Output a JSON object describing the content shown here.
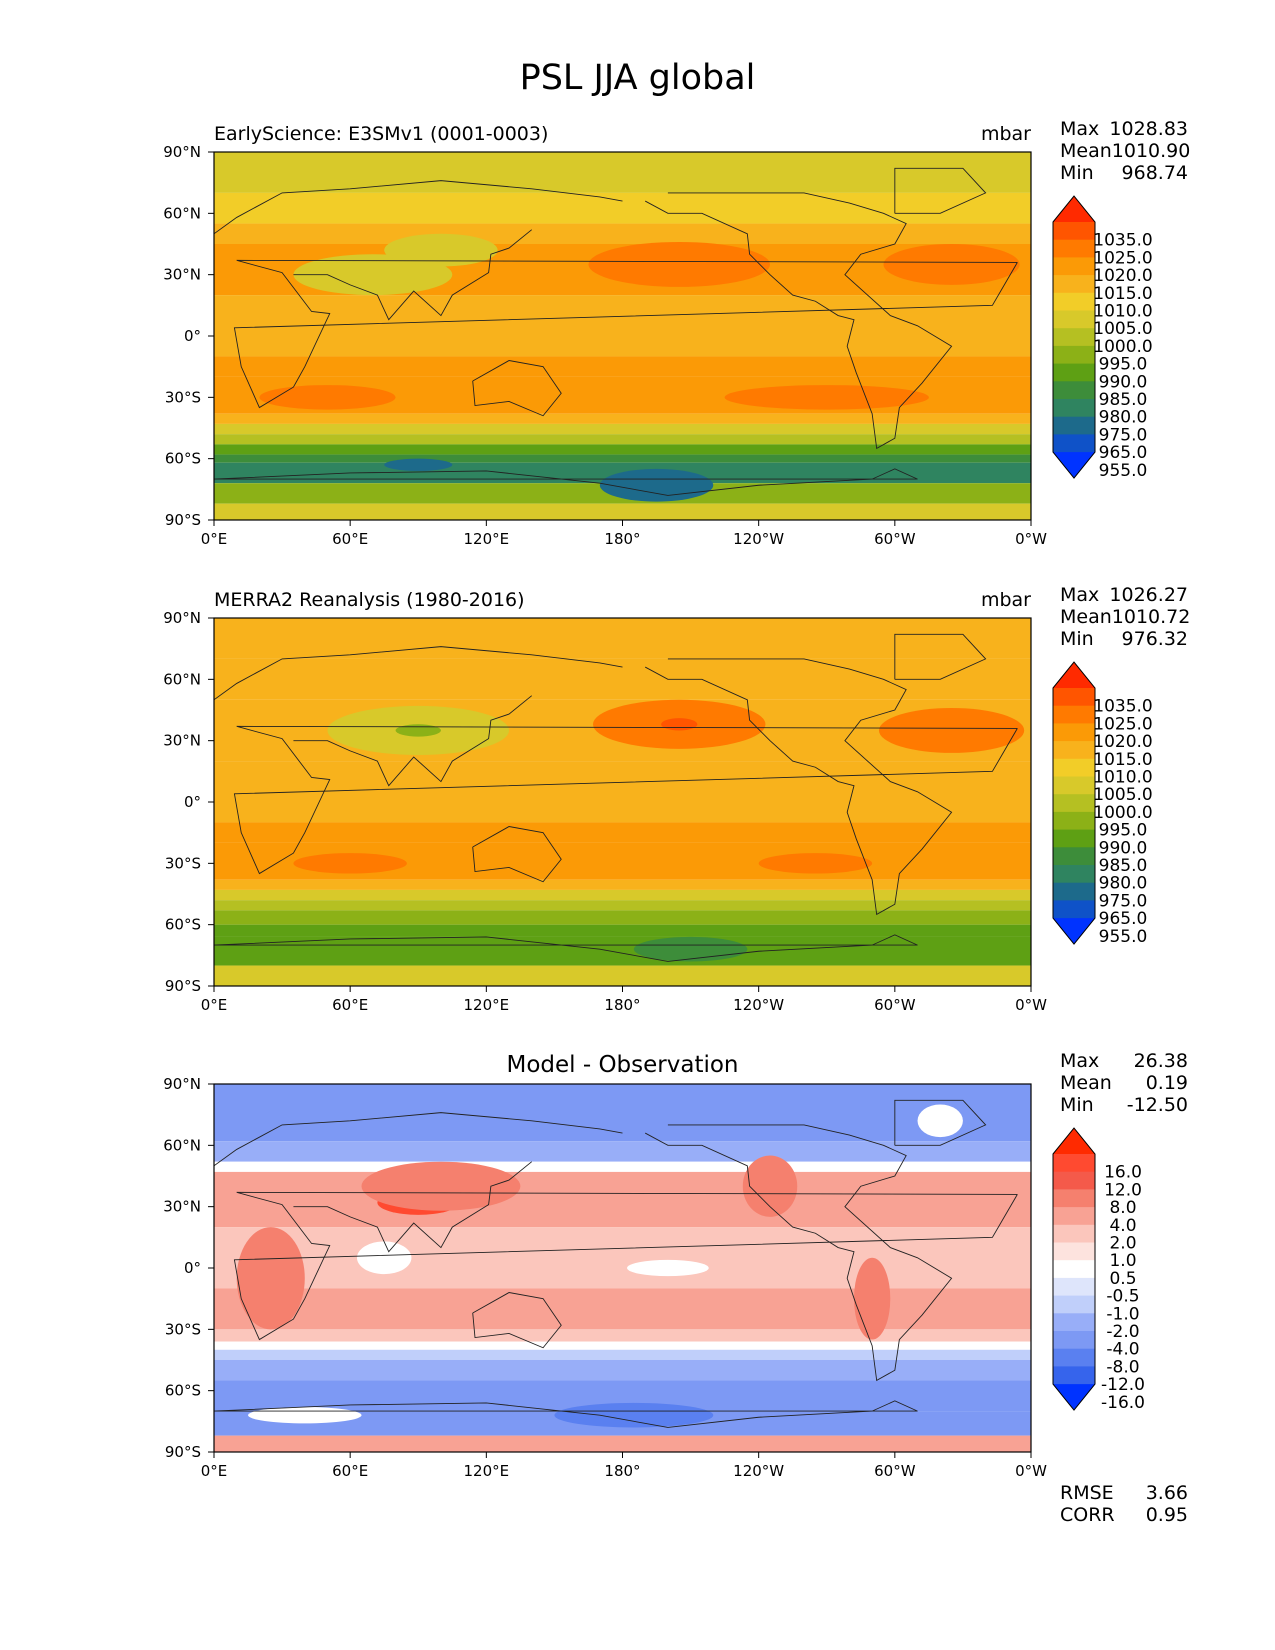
{
  "figure": {
    "title": "PSL JJA global"
  },
  "chart_data": [
    {
      "type": "heatmap",
      "title": "",
      "subtitle_left": "EarlyScience: E3SMv1 (0001-0003)",
      "subtitle_right": "mbar",
      "xlabel": "",
      "ylabel": "",
      "x_ticks": [
        "0°E",
        "60°E",
        "120°E",
        "180°",
        "120°W",
        "60°W",
        "0°W"
      ],
      "y_ticks": [
        "90°N",
        "60°N",
        "30°N",
        "0°",
        "30°S",
        "60°S",
        "90°S"
      ],
      "xlim": [
        0,
        360
      ],
      "ylim": [
        -90,
        90
      ],
      "stats": {
        "max_label": "Max",
        "max": "1028.83",
        "mean_label": "Mean",
        "mean": "1010.90",
        "min_label": "Min",
        "min": "968.74"
      },
      "colorbar": {
        "labels": [
          "1035.0",
          "1025.0",
          "1020.0",
          "1015.0",
          "1010.0",
          "1005.0",
          "1000.0",
          "995.0",
          "990.0",
          "985.0",
          "980.0",
          "975.0",
          "965.0",
          "955.0"
        ],
        "colors": [
          "#ff2a00",
          "#ff5500",
          "#ff7a00",
          "#fb9a06",
          "#f8b21c",
          "#f2cd28",
          "#d8c92a",
          "#b5c022",
          "#8cb117",
          "#5ea014",
          "#3d8d3a",
          "#2f8460",
          "#1d6a8b",
          "#0f52c8",
          "#0033ff"
        ]
      },
      "field": {
        "colors": [
          "#0033ff",
          "#0f52c8",
          "#1d6a8b",
          "#2f8460",
          "#3d8d3a",
          "#5ea014",
          "#8cb117",
          "#b5c022",
          "#d8c92a",
          "#f2cd28",
          "#f8b21c",
          "#fb9a06",
          "#ff7a00",
          "#ff5500",
          "#ff2a00"
        ],
        "thresholds": [
          955,
          965,
          975,
          980,
          985,
          990,
          995,
          1000,
          1005,
          1010,
          1015,
          1020,
          1025,
          1035
        ],
        "bands": [
          {
            "lat": [
              90,
              70
            ],
            "value": 1004
          },
          {
            "lat": [
              70,
              55
            ],
            "value": 1008
          },
          {
            "lat": [
              55,
              45
            ],
            "value": 1012
          },
          {
            "lat": [
              45,
              20
            ],
            "value": 1016
          },
          {
            "lat": [
              20,
              -10
            ],
            "value": 1012
          },
          {
            "lat": [
              -10,
              -20
            ],
            "value": 1016
          },
          {
            "lat": [
              -20,
              -38
            ],
            "value": 1019
          },
          {
            "lat": [
              -38,
              -43
            ],
            "value": 1012
          },
          {
            "lat": [
              -43,
              -48
            ],
            "value": 1004
          },
          {
            "lat": [
              -48,
              -53
            ],
            "value": 996
          },
          {
            "lat": [
              -53,
              -58
            ],
            "value": 988
          },
          {
            "lat": [
              -58,
              -62
            ],
            "value": 982
          },
          {
            "lat": [
              -62,
              -72
            ],
            "value": 978
          },
          {
            "lat": [
              -72,
              -82
            ],
            "value": 992
          },
          {
            "lat": [
              -82,
              -90
            ],
            "value": 1003
          }
        ],
        "blobs": [
          {
            "lon": 205,
            "lat": 35,
            "rx": 40,
            "ry": 11,
            "value": 1024
          },
          {
            "lon": 325,
            "lat": 35,
            "rx": 30,
            "ry": 10,
            "value": 1024
          },
          {
            "lon": 50,
            "lat": -30,
            "rx": 30,
            "ry": 6,
            "value": 1022
          },
          {
            "lon": 270,
            "lat": -30,
            "rx": 45,
            "ry": 6,
            "value": 1021
          },
          {
            "lon": 70,
            "lat": 30,
            "rx": 35,
            "ry": 10,
            "value": 1001
          },
          {
            "lon": 100,
            "lat": 42,
            "rx": 25,
            "ry": 8,
            "value": 1002
          },
          {
            "lon": 195,
            "lat": -73,
            "rx": 25,
            "ry": 8,
            "value": 967
          },
          {
            "lon": 90,
            "lat": -63,
            "rx": 15,
            "ry": 3,
            "value": 967
          }
        ]
      }
    },
    {
      "type": "heatmap",
      "title": "",
      "subtitle_left": "MERRA2 Reanalysis (1980-2016)",
      "subtitle_right": "mbar",
      "xlabel": "",
      "ylabel": "",
      "x_ticks": [
        "0°E",
        "60°E",
        "120°E",
        "180°",
        "120°W",
        "60°W",
        "0°W"
      ],
      "y_ticks": [
        "90°N",
        "60°N",
        "30°N",
        "0°",
        "30°S",
        "60°S",
        "90°S"
      ],
      "xlim": [
        0,
        360
      ],
      "ylim": [
        -90,
        90
      ],
      "stats": {
        "max_label": "Max",
        "max": "1026.27",
        "mean_label": "Mean",
        "mean": "1010.72",
        "min_label": "Min",
        "min": "976.32"
      },
      "colorbar": {
        "labels": [
          "1035.0",
          "1025.0",
          "1020.0",
          "1015.0",
          "1010.0",
          "1005.0",
          "1000.0",
          "995.0",
          "990.0",
          "985.0",
          "980.0",
          "975.0",
          "965.0",
          "955.0"
        ],
        "colors": [
          "#ff2a00",
          "#ff5500",
          "#ff7a00",
          "#fb9a06",
          "#f8b21c",
          "#f2cd28",
          "#d8c92a",
          "#b5c022",
          "#8cb117",
          "#5ea014",
          "#3d8d3a",
          "#2f8460",
          "#1d6a8b",
          "#0f52c8",
          "#0033ff"
        ]
      },
      "field": {
        "colors": [
          "#0033ff",
          "#0f52c8",
          "#1d6a8b",
          "#2f8460",
          "#3d8d3a",
          "#5ea014",
          "#8cb117",
          "#b5c022",
          "#d8c92a",
          "#f2cd28",
          "#f8b21c",
          "#fb9a06",
          "#ff7a00",
          "#ff5500",
          "#ff2a00"
        ],
        "thresholds": [
          955,
          965,
          975,
          980,
          985,
          990,
          995,
          1000,
          1005,
          1010,
          1015,
          1020,
          1025,
          1035
        ],
        "bands": [
          {
            "lat": [
              90,
              70
            ],
            "value": 1012
          },
          {
            "lat": [
              70,
              50
            ],
            "value": 1010
          },
          {
            "lat": [
              50,
              20
            ],
            "value": 1013
          },
          {
            "lat": [
              20,
              -10
            ],
            "value": 1012
          },
          {
            "lat": [
              -10,
              -20
            ],
            "value": 1016
          },
          {
            "lat": [
              -20,
              -38
            ],
            "value": 1018
          },
          {
            "lat": [
              -38,
              -43
            ],
            "value": 1011
          },
          {
            "lat": [
              -43,
              -48
            ],
            "value": 1004
          },
          {
            "lat": [
              -48,
              -53
            ],
            "value": 997
          },
          {
            "lat": [
              -53,
              -60
            ],
            "value": 991
          },
          {
            "lat": [
              -60,
              -66
            ],
            "value": 985
          },
          {
            "lat": [
              -66,
              -80
            ],
            "value": 989
          },
          {
            "lat": [
              -80,
              -90
            ],
            "value": 1001
          }
        ],
        "blobs": [
          {
            "lon": 205,
            "lat": 38,
            "rx": 38,
            "ry": 12,
            "value": 1021
          },
          {
            "lon": 205,
            "lat": 38,
            "rx": 8,
            "ry": 3,
            "value": 1026
          },
          {
            "lon": 325,
            "lat": 35,
            "rx": 32,
            "ry": 11,
            "value": 1021
          },
          {
            "lon": 60,
            "lat": -30,
            "rx": 25,
            "ry": 5,
            "value": 1021
          },
          {
            "lon": 265,
            "lat": -30,
            "rx": 25,
            "ry": 5,
            "value": 1021
          },
          {
            "lon": 90,
            "lat": 35,
            "rx": 40,
            "ry": 12,
            "value": 1003
          },
          {
            "lon": 90,
            "lat": 35,
            "rx": 10,
            "ry": 3,
            "value": 994
          },
          {
            "lon": 210,
            "lat": -72,
            "rx": 25,
            "ry": 6,
            "value": 983
          }
        ]
      }
    },
    {
      "type": "heatmap",
      "title": "Model - Observation",
      "subtitle_left": "",
      "subtitle_right": "",
      "xlabel": "",
      "ylabel": "",
      "x_ticks": [
        "0°E",
        "60°E",
        "120°E",
        "180°",
        "120°W",
        "60°W",
        "0°W"
      ],
      "y_ticks": [
        "90°N",
        "60°N",
        "30°N",
        "0°",
        "30°S",
        "60°S",
        "90°S"
      ],
      "xlim": [
        0,
        360
      ],
      "ylim": [
        -90,
        90
      ],
      "stats": {
        "max_label": "Max",
        "max": "26.38",
        "mean_label": "Mean",
        "mean": "0.19",
        "min_label": "Min",
        "min": "-12.50"
      },
      "metrics": {
        "rmse_label": "RMSE",
        "rmse": "3.66",
        "corr_label": "CORR",
        "corr": "0.95"
      },
      "colorbar": {
        "labels": [
          "16.0",
          "12.0",
          "8.0",
          "4.0",
          "2.0",
          "1.0",
          "0.5",
          "-0.5",
          "-1.0",
          "-2.0",
          "-4.0",
          "-8.0",
          "-12.0",
          "-16.0"
        ],
        "colors": [
          "#ff2a00",
          "#ff4a30",
          "#f45a4a",
          "#f5806e",
          "#f8a294",
          "#fbc6bc",
          "#fde3de",
          "#ffffff",
          "#dee5fb",
          "#c0cffa",
          "#98aef8",
          "#7d99f4",
          "#5a80f0",
          "#3664ec",
          "#0033ff"
        ]
      },
      "field": {
        "colors": [
          "#0033ff",
          "#3664ec",
          "#5a80f0",
          "#7d99f4",
          "#98aef8",
          "#c0cffa",
          "#dee5fb",
          "#ffffff",
          "#fde3de",
          "#fbc6bc",
          "#f8a294",
          "#f5806e",
          "#f45a4a",
          "#ff4a30",
          "#ff2a00"
        ],
        "thresholds": [
          -16,
          -12,
          -8,
          -4,
          -2,
          -1,
          -0.5,
          0.5,
          1,
          2,
          4,
          8,
          12,
          16
        ],
        "bands": [
          {
            "lat": [
              90,
              62
            ],
            "value": -5
          },
          {
            "lat": [
              62,
              52
            ],
            "value": -3
          },
          {
            "lat": [
              52,
              47
            ],
            "value": 0
          },
          {
            "lat": [
              47,
              20
            ],
            "value": 2.5
          },
          {
            "lat": [
              20,
              -10
            ],
            "value": 1.5
          },
          {
            "lat": [
              -10,
              -30
            ],
            "value": 2.5
          },
          {
            "lat": [
              -30,
              -36
            ],
            "value": 1.5
          },
          {
            "lat": [
              -36,
              -40
            ],
            "value": 0
          },
          {
            "lat": [
              -40,
              -45
            ],
            "value": -1.5
          },
          {
            "lat": [
              -45,
              -55
            ],
            "value": -3
          },
          {
            "lat": [
              -55,
              -70
            ],
            "value": -6
          },
          {
            "lat": [
              -70,
              -82
            ],
            "value": -6
          },
          {
            "lat": [
              -82,
              -90
            ],
            "value": 2.5
          }
        ],
        "blobs": [
          {
            "lon": 200,
            "lat": 0,
            "rx": 18,
            "ry": 4,
            "value": 0
          },
          {
            "lon": 75,
            "lat": 5,
            "rx": 12,
            "ry": 8,
            "value": 0
          },
          {
            "lon": 90,
            "lat": 32,
            "rx": 18,
            "ry": 6,
            "value": 14
          },
          {
            "lon": 100,
            "lat": 40,
            "rx": 35,
            "ry": 12,
            "value": 6
          },
          {
            "lon": 25,
            "lat": -5,
            "rx": 15,
            "ry": 25,
            "value": 6
          },
          {
            "lon": 290,
            "lat": -15,
            "rx": 8,
            "ry": 20,
            "value": 7
          },
          {
            "lon": 245,
            "lat": 40,
            "rx": 12,
            "ry": 15,
            "value": 6
          },
          {
            "lon": 320,
            "lat": 72,
            "rx": 10,
            "ry": 8,
            "value": 0
          },
          {
            "lon": 185,
            "lat": -72,
            "rx": 35,
            "ry": 6,
            "value": -11
          },
          {
            "lon": 40,
            "lat": -72,
            "rx": 25,
            "ry": 4,
            "value": 0
          }
        ]
      }
    }
  ]
}
